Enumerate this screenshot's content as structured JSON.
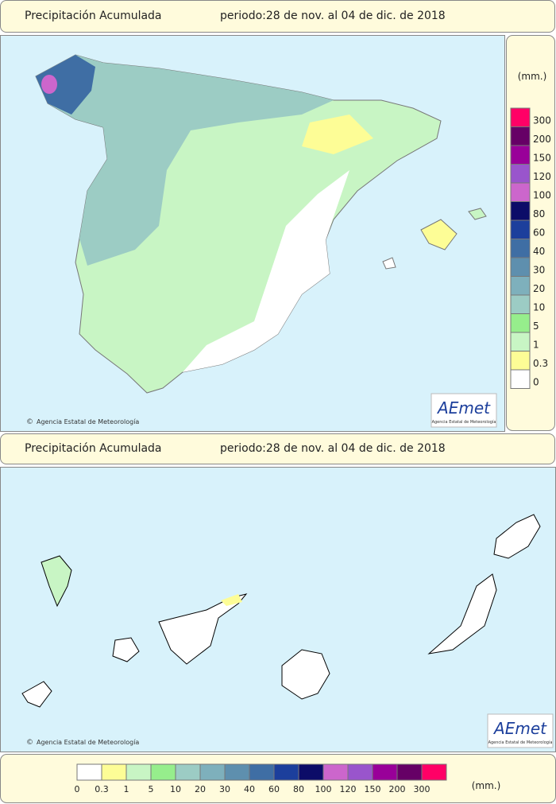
{
  "header": {
    "title": "Precipitación Acumulada",
    "period": "periodo:28 de nov. al 04 de dic. de 2018"
  },
  "legend": {
    "unit": "(mm.)",
    "items": [
      {
        "label": 0,
        "color": "#ffffff"
      },
      {
        "label": 0.3,
        "color": "#fdfd96"
      },
      {
        "label": 1,
        "color": "#c8f5c4"
      },
      {
        "label": 5,
        "color": "#96ee8c"
      },
      {
        "label": 10,
        "color": "#9cccc4"
      },
      {
        "label": 20,
        "color": "#7eb0bc"
      },
      {
        "label": 30,
        "color": "#5e8fae"
      },
      {
        "label": 40,
        "color": "#3f6ea4"
      },
      {
        "label": 60,
        "color": "#1c3f9c"
      },
      {
        "label": 80,
        "color": "#0c0c68"
      },
      {
        "label": 100,
        "color": "#cc66cc"
      },
      {
        "label": 120,
        "color": "#9955cc"
      },
      {
        "label": 150,
        "color": "#990099"
      },
      {
        "label": 200,
        "color": "#660066"
      },
      {
        "label": 300,
        "color": "#ff0066"
      }
    ]
  },
  "credit": "Agencia Estatal de Meteorología",
  "logo": {
    "name": "AEmet",
    "subtitle": "Agencia Estatal de Meteorología"
  }
}
